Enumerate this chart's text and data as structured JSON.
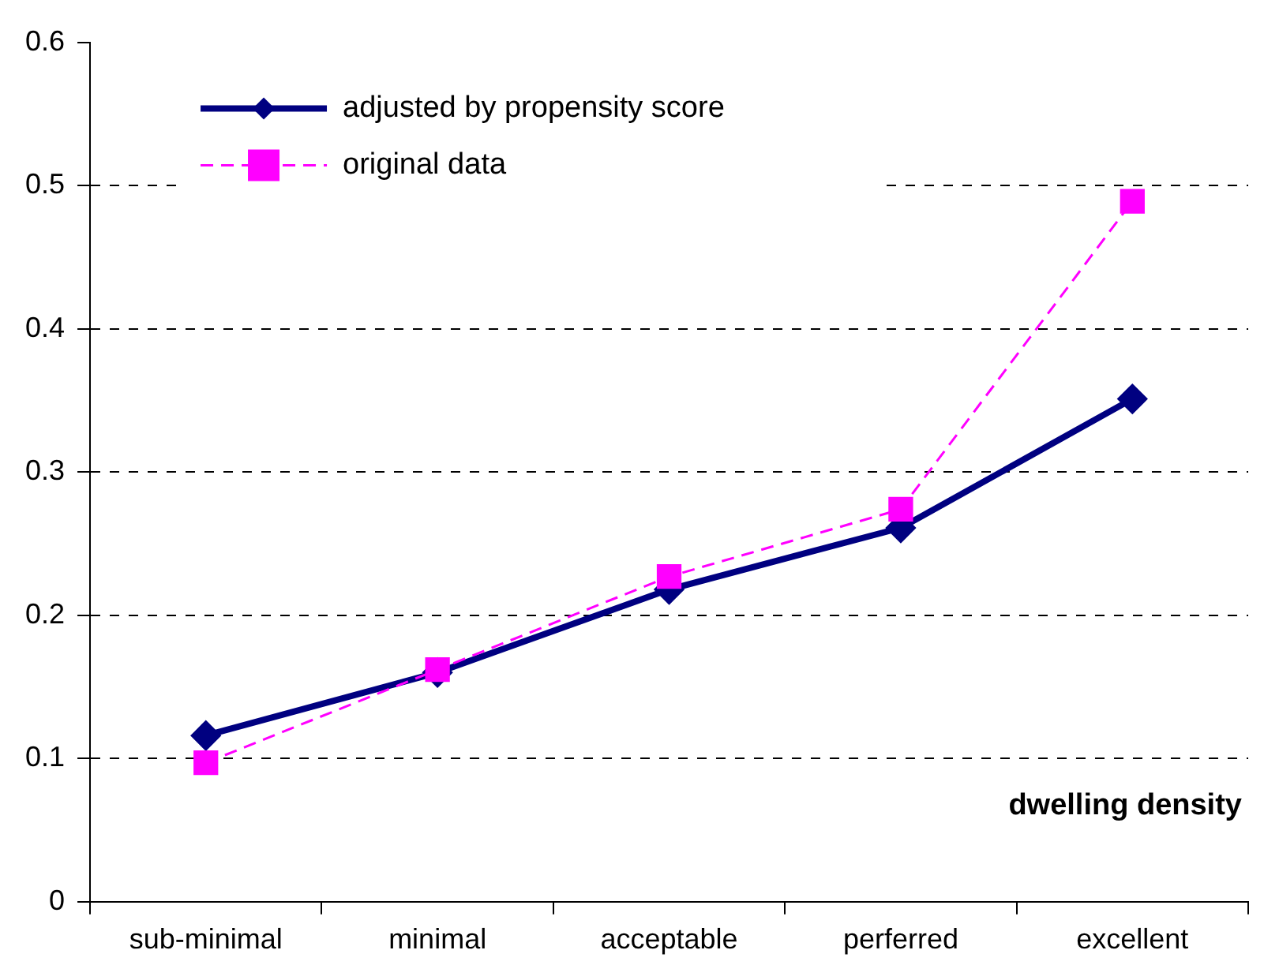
{
  "chart_data": {
    "type": "line",
    "xlabel": "dwelling density",
    "categories": [
      "sub-minimal",
      "minimal",
      "acceptable",
      "perferred",
      "excellent"
    ],
    "series": [
      {
        "name": "adjusted by propensity score",
        "color": "#000080",
        "values": [
          0.116,
          0.16,
          0.218,
          0.261,
          0.351
        ],
        "marker": "diamond",
        "line_style": "solid"
      },
      {
        "name": "original data",
        "color": "#ff00ff",
        "values": [
          0.097,
          0.162,
          0.227,
          0.274,
          0.489
        ],
        "marker": "square",
        "line_style": "dashed"
      }
    ],
    "ylim": [
      0,
      0.6
    ],
    "yticks": [
      0,
      0.1,
      0.2,
      0.3,
      0.4,
      0.5,
      0.6
    ],
    "grid": "y",
    "legend": "top left"
  }
}
